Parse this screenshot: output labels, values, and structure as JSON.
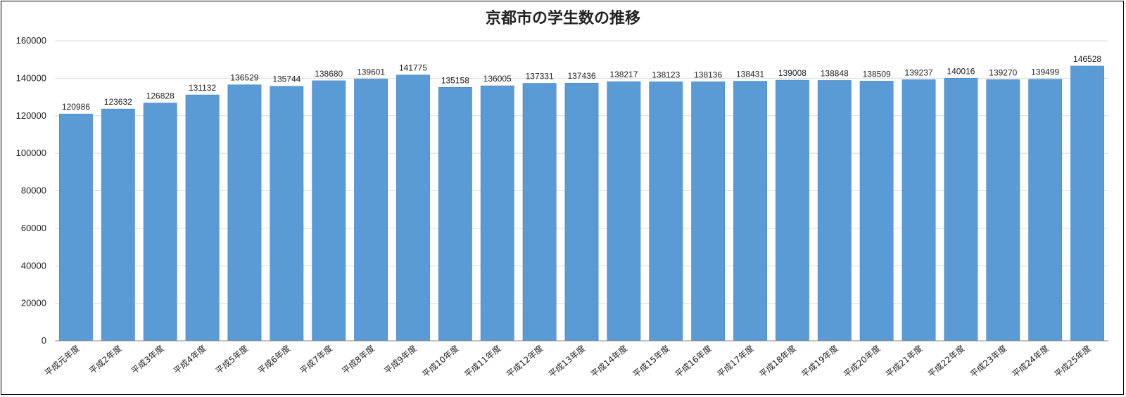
{
  "chart_data": {
    "type": "bar",
    "title": "京都市の学生数の推移",
    "xlabel": "",
    "ylabel": "",
    "ylim": [
      0,
      160000
    ],
    "yticks": [
      "0",
      "20000",
      "40000",
      "60000",
      "80000",
      "100000",
      "120000",
      "140000",
      "160000"
    ],
    "grid": true,
    "legend": "none",
    "bar_color": "#5b9bd5",
    "categories": [
      "平成元年度",
      "平成2年度",
      "平成3年度",
      "平成4年度",
      "平成5年度",
      "平成6年度",
      "平成7年度",
      "平成8年度",
      "平成9年度",
      "平成10年度",
      "平成11年度",
      "平成12年度",
      "平成13年度",
      "平成14年度",
      "平成15年度",
      "平成16年度",
      "平成17年度",
      "平成18年度",
      "平成19年度",
      "平成20年度",
      "平成21年度",
      "平成22年度",
      "平成23年度",
      "平成24年度",
      "平成25年度"
    ],
    "values": [
      120986,
      123632,
      126828,
      131132,
      136529,
      135744,
      138680,
      139601,
      141775,
      135158,
      136005,
      137331,
      137436,
      138217,
      138123,
      138136,
      138431,
      139008,
      138848,
      138509,
      139237,
      140016,
      139270,
      139499,
      146528
    ],
    "data_labels": [
      "120986",
      "123632",
      "126828",
      "131132",
      "136529",
      "135744",
      "138680",
      "139601",
      "141775",
      "135158",
      "136005",
      "137331",
      "137436",
      "138217",
      "138123",
      "138136",
      "138431",
      "139008",
      "138848",
      "138509",
      "139237",
      "140016",
      "139270",
      "139499",
      "146528"
    ]
  }
}
